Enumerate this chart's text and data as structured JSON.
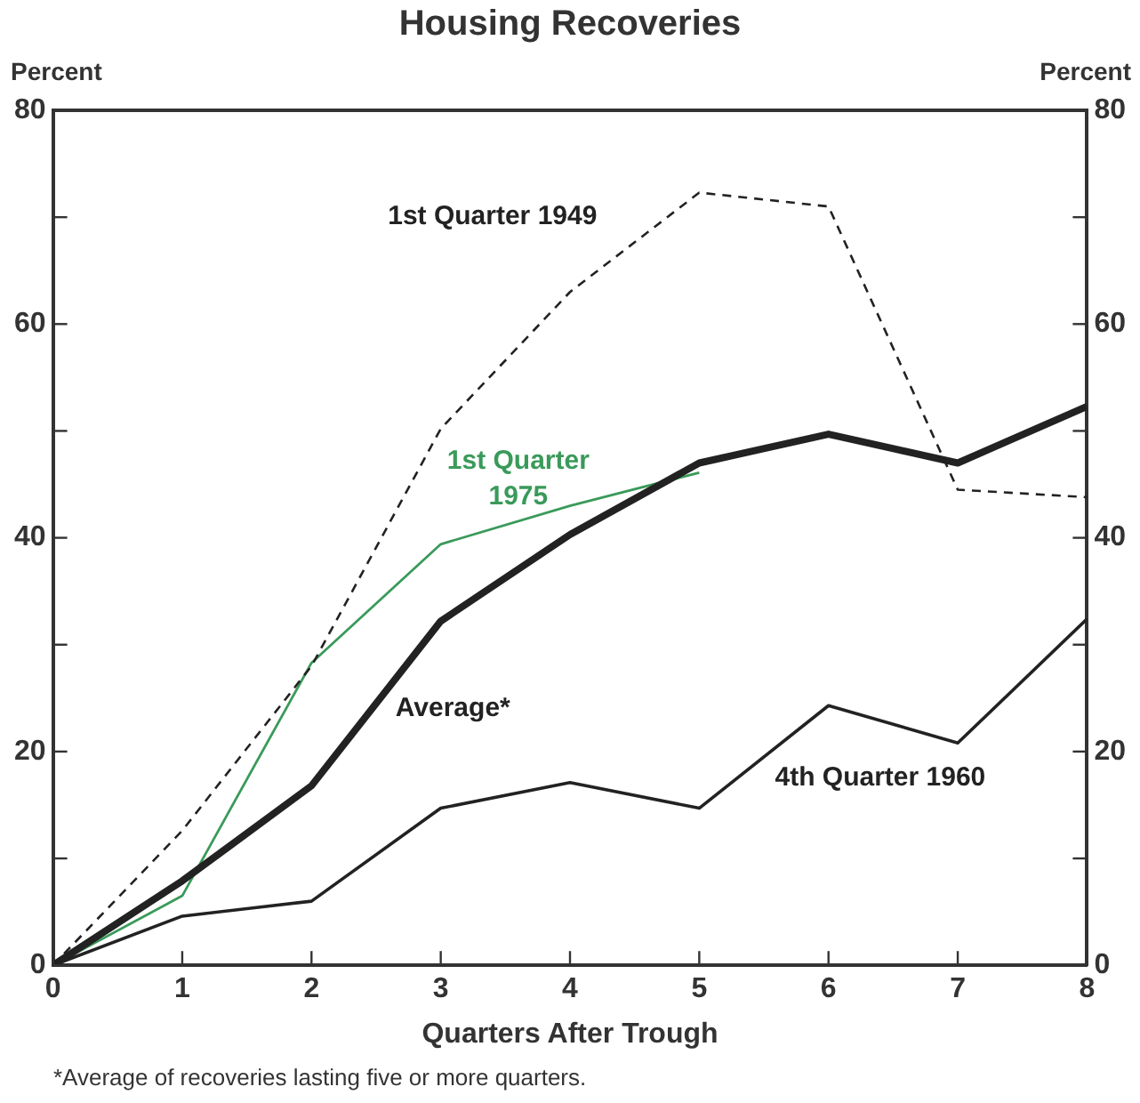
{
  "chart_data": {
    "type": "line",
    "title": "Housing Recoveries",
    "xlabel": "Quarters After Trough",
    "ylabel": "Percent",
    "y2label": "Percent",
    "x": [
      0,
      1,
      2,
      3,
      4,
      5,
      6,
      7,
      8
    ],
    "series": [
      {
        "name": "1st Quarter 1949",
        "color": "#222222",
        "line_style": "dashed",
        "values": [
          0,
          12.6,
          28,
          50.2,
          63,
          72.3,
          71,
          44.5,
          43.8
        ]
      },
      {
        "name": "Average*",
        "color": "#222222",
        "values": [
          0,
          7.9,
          16.8,
          32.2,
          40.3,
          47,
          49.7,
          47,
          52.3
        ]
      },
      {
        "name": "1st Quarter 1975",
        "color": "#3a9a5a",
        "values": [
          0,
          6.5,
          28.3,
          39.4,
          43,
          46.1,
          null,
          null,
          null
        ]
      },
      {
        "name": "4th Quarter 1960",
        "color": "#222222",
        "values": [
          0,
          4.6,
          6,
          14.7,
          17.1,
          14.7,
          24.3,
          20.8,
          32.4
        ]
      }
    ],
    "xlim": [
      0,
      8
    ],
    "xticks": [
      0,
      1,
      2,
      3,
      4,
      5,
      6,
      7,
      8
    ],
    "ylim": [
      0,
      80
    ],
    "yticks": [
      0,
      {
        "value": 10,
        "label": null
      },
      20,
      {
        "value": 30,
        "label": null
      },
      40,
      {
        "value": 50,
        "label": null
      },
      60,
      {
        "value": 70,
        "label": null
      },
      80
    ],
    "y2lim": [
      0,
      80
    ],
    "y2ticks": [
      0,
      {
        "value": 10,
        "label": null
      },
      20,
      {
        "value": 30,
        "label": null
      },
      40,
      {
        "value": 50,
        "label": null
      },
      60,
      {
        "value": 70,
        "label": null
      },
      80
    ],
    "grid": false,
    "legend": false,
    "marker": "none",
    "line_style": "solid",
    "annotations": [
      "*Average of recoveries lasting five or more quarters."
    ]
  }
}
